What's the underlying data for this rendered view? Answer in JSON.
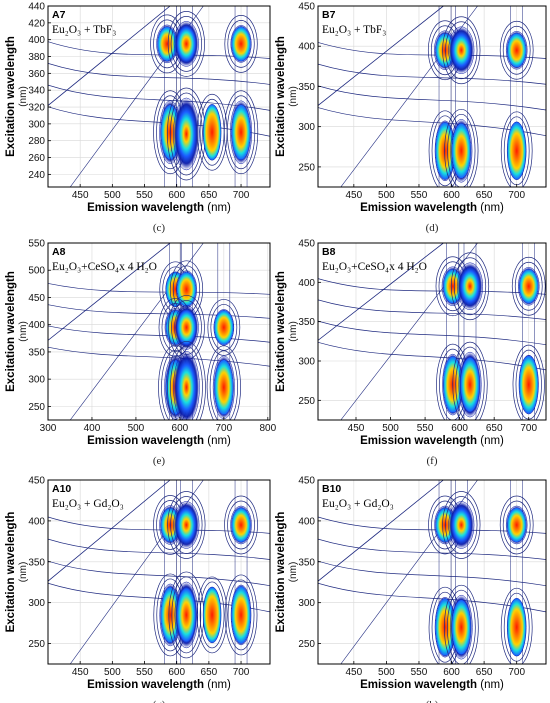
{
  "chart_data": [
    {
      "type": "heatmap",
      "id": "A7",
      "caption": "(c)",
      "sample_label": "Eu₂O₃ + TbF₃",
      "xlabel": "Emission wavelength",
      "xunit": "(nm)",
      "ylabel": "Excitation wavelength",
      "yunit": "(nm)",
      "xlim": [
        400,
        745
      ],
      "ylim": [
        225,
        440
      ],
      "xticks": [
        450,
        500,
        550,
        600,
        650,
        700
      ],
      "yticks": [
        240,
        260,
        280,
        300,
        320,
        340,
        360,
        380,
        400,
        420,
        440
      ],
      "peaks": [
        {
          "em": 585,
          "ex": 395,
          "level": 0.5
        },
        {
          "em": 615,
          "ex": 395,
          "level": 0.85
        },
        {
          "em": 700,
          "ex": 395,
          "level": 0.45
        },
        {
          "em": 590,
          "ex": 290,
          "level": 0.55
        },
        {
          "em": 615,
          "ex": 288,
          "level": 1.0
        },
        {
          "em": 700,
          "ex": 290,
          "level": 0.55
        },
        {
          "em": 655,
          "ex": 290,
          "level": 0.2
        }
      ]
    },
    {
      "type": "heatmap",
      "id": "B7",
      "caption": "(d)",
      "sample_label": "Eu₂O₃ + TbF₃",
      "xlabel": "Emission wavelength",
      "xunit": "(nm)",
      "ylabel": "Excitation wavelength",
      "yunit": "(nm)",
      "xlim": [
        395,
        745
      ],
      "ylim": [
        225,
        450
      ],
      "xticks": [
        450,
        500,
        550,
        600,
        650,
        700
      ],
      "yticks": [
        250,
        300,
        350,
        400,
        450
      ],
      "peaks": [
        {
          "em": 590,
          "ex": 395,
          "level": 0.55
        },
        {
          "em": 615,
          "ex": 395,
          "level": 0.95
        },
        {
          "em": 700,
          "ex": 395,
          "level": 0.5
        },
        {
          "em": 590,
          "ex": 270,
          "level": 0.4
        },
        {
          "em": 615,
          "ex": 270,
          "level": 0.55
        },
        {
          "em": 700,
          "ex": 270,
          "level": 0.3
        }
      ]
    },
    {
      "type": "heatmap",
      "id": "A8",
      "caption": "(e)",
      "sample_label": "Eu₂O₃+CeSO₄x 4 H₂O",
      "xlabel": "Emission wavelength",
      "xunit": "(nm)",
      "ylabel": "Excitation wavelength",
      "yunit": "(nm)",
      "xlim": [
        300,
        805
      ],
      "ylim": [
        225,
        550
      ],
      "xticks": [
        300,
        400,
        500,
        600,
        700,
        800
      ],
      "yticks": [
        250,
        300,
        350,
        400,
        450,
        500,
        550
      ],
      "peaks": [
        {
          "em": 590,
          "ex": 465,
          "level": 0.35
        },
        {
          "em": 615,
          "ex": 465,
          "level": 0.45
        },
        {
          "em": 590,
          "ex": 395,
          "level": 0.5
        },
        {
          "em": 615,
          "ex": 395,
          "level": 0.8
        },
        {
          "em": 700,
          "ex": 395,
          "level": 0.4
        },
        {
          "em": 590,
          "ex": 285,
          "level": 0.6
        },
        {
          "em": 615,
          "ex": 285,
          "level": 1.0
        },
        {
          "em": 700,
          "ex": 285,
          "level": 0.55
        }
      ]
    },
    {
      "type": "heatmap",
      "id": "B8",
      "caption": "(f)",
      "sample_label": "Eu₂O₃+CeSO₄x 4 H₂O",
      "xlabel": "Emission wavelength",
      "xunit": "(nm)",
      "ylabel": "Excitation wavelength",
      "yunit": "(nm)",
      "xlim": [
        395,
        725
      ],
      "ylim": [
        225,
        450
      ],
      "xticks": [
        450,
        500,
        550,
        600,
        650,
        700
      ],
      "yticks": [
        250,
        300,
        350,
        400,
        450
      ],
      "peaks": [
        {
          "em": 590,
          "ex": 395,
          "level": 0.55
        },
        {
          "em": 615,
          "ex": 395,
          "level": 0.95
        },
        {
          "em": 700,
          "ex": 395,
          "level": 0.5
        },
        {
          "em": 590,
          "ex": 270,
          "level": 0.45
        },
        {
          "em": 615,
          "ex": 270,
          "level": 0.65
        },
        {
          "em": 700,
          "ex": 270,
          "level": 0.35
        }
      ]
    },
    {
      "type": "heatmap",
      "id": "A10",
      "caption": "(g)",
      "sample_label": "Eu₂O₃ + Gd₂O₃",
      "xlabel": "Emission wavelength",
      "xunit": "(nm)",
      "ylabel": "Excitation wavelength",
      "yunit": "(nm)",
      "xlim": [
        400,
        745
      ],
      "ylim": [
        225,
        450
      ],
      "xticks": [
        450,
        500,
        550,
        600,
        650,
        700
      ],
      "yticks": [
        250,
        300,
        350,
        400,
        450
      ],
      "peaks": [
        {
          "em": 590,
          "ex": 395,
          "level": 0.55
        },
        {
          "em": 615,
          "ex": 395,
          "level": 0.95
        },
        {
          "em": 700,
          "ex": 395,
          "level": 0.5
        },
        {
          "em": 590,
          "ex": 285,
          "level": 0.5
        },
        {
          "em": 615,
          "ex": 285,
          "level": 0.7
        },
        {
          "em": 700,
          "ex": 285,
          "level": 0.4
        },
        {
          "em": 655,
          "ex": 285,
          "level": 0.2
        }
      ]
    },
    {
      "type": "heatmap",
      "id": "B10",
      "caption": "(h)",
      "sample_label": "Eu₂O₃ + Gd₂O₃",
      "xlabel": "Emission wavelength",
      "xunit": "(nm)",
      "ylabel": "Excitation wavelength",
      "yunit": "(nm)",
      "xlim": [
        395,
        745
      ],
      "ylim": [
        225,
        450
      ],
      "xticks": [
        450,
        500,
        550,
        600,
        650,
        700
      ],
      "yticks": [
        250,
        300,
        350,
        400,
        450
      ],
      "peaks": [
        {
          "em": 590,
          "ex": 395,
          "level": 0.5
        },
        {
          "em": 615,
          "ex": 395,
          "level": 0.95
        },
        {
          "em": 700,
          "ex": 395,
          "level": 0.5
        },
        {
          "em": 590,
          "ex": 270,
          "level": 0.4
        },
        {
          "em": 615,
          "ex": 270,
          "level": 0.6
        },
        {
          "em": 700,
          "ex": 270,
          "level": 0.3
        }
      ]
    }
  ]
}
